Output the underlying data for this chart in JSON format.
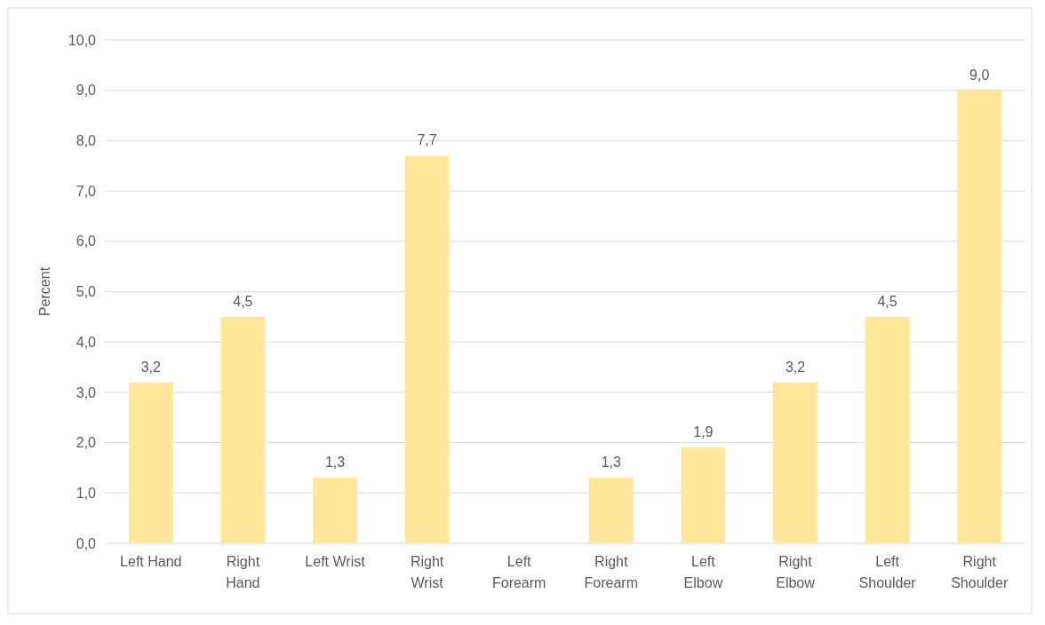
{
  "chart_data": {
    "type": "bar",
    "ylabel": "Percent",
    "categories": [
      "Left Hand",
      "Right Hand",
      "Left Wrist",
      "Right Wrist",
      "Left Forearm",
      "Right Forearm",
      "Left Elbow",
      "Right Elbow",
      "Left Shoulder",
      "Right Shoulder"
    ],
    "values": [
      3.2,
      4.5,
      1.3,
      7.7,
      0,
      1.3,
      1.9,
      3.2,
      4.5,
      9.0
    ],
    "value_labels": [
      "3,2",
      "4,5",
      "1,3",
      "7,7",
      null,
      "1,3",
      "1,9",
      "3,2",
      "4,5",
      "9,0"
    ],
    "color": "#ffe699",
    "ylim": [
      0,
      10
    ],
    "yticks": [
      {
        "value": 0,
        "label": "0,0"
      },
      {
        "value": 1,
        "label": "1,0"
      },
      {
        "value": 2,
        "label": "2,0"
      },
      {
        "value": 3,
        "label": "3,0"
      },
      {
        "value": 4,
        "label": "4,0"
      },
      {
        "value": 5,
        "label": "5,0"
      },
      {
        "value": 6,
        "label": "6,0"
      },
      {
        "value": 7,
        "label": "7,0"
      },
      {
        "value": 8,
        "label": "8,0"
      },
      {
        "value": 9,
        "label": "9,0"
      },
      {
        "value": 10,
        "label": "10,0"
      }
    ],
    "grid": "y"
  }
}
